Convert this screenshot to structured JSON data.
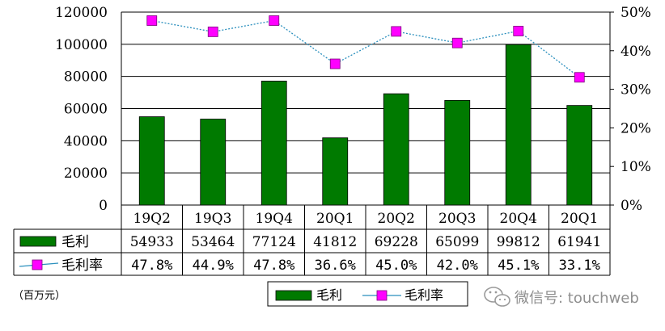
{
  "chart_data": {
    "type": "bar",
    "categories": [
      "19Q2",
      "19Q3",
      "19Q4",
      "20Q1",
      "20Q2",
      "20Q3",
      "20Q4",
      "20Q1"
    ],
    "series": [
      {
        "name": "毛利",
        "type": "bar",
        "axis": "left",
        "color": "#007a00",
        "values": [
          54933,
          53464,
          77124,
          41812,
          69228,
          65099,
          99812,
          61941
        ],
        "table_values": [
          "54933",
          "53464",
          "77124",
          "41812",
          "69228",
          "65099",
          "99812",
          "61941"
        ]
      },
      {
        "name": "毛利率",
        "type": "line",
        "axis": "right",
        "color": "#ff00ff",
        "line_color": "#2a8fbd",
        "values": [
          47.8,
          44.9,
          47.8,
          36.6,
          45.0,
          42.0,
          45.1,
          33.1
        ],
        "table_values": [
          "47.8%",
          "44.9%",
          "47.8%",
          "36.6%",
          "45.0%",
          "42.0%",
          "45.1%",
          "33.1%"
        ]
      }
    ],
    "y_left": {
      "ylim": [
        0,
        120000
      ],
      "ticks": [
        "0",
        "20000",
        "40000",
        "60000",
        "80000",
        "100000",
        "120000"
      ]
    },
    "y_right": {
      "ylim": [
        0,
        50
      ],
      "ticks": [
        "0%",
        "10%",
        "20%",
        "30%",
        "40%",
        "50%"
      ]
    },
    "unit_note": "（百万元）",
    "legend": {
      "placement": "bottom",
      "items": [
        "毛利",
        "毛利率"
      ]
    },
    "grid": true
  },
  "watermark": {
    "icon": "wechat-icon",
    "text": "微信号: touchweb"
  }
}
